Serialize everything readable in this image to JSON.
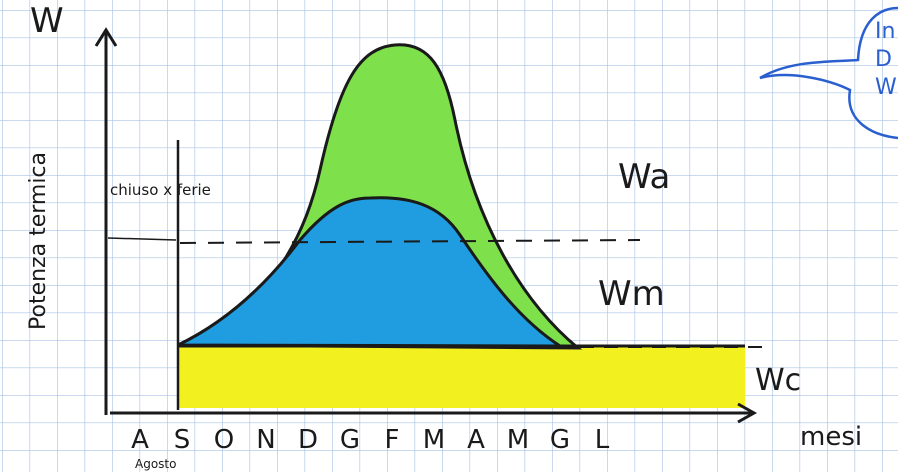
{
  "y_axis": {
    "label": "W",
    "title": "Potenza termica"
  },
  "x_axis": {
    "label": "mesi",
    "months": [
      "A",
      "S",
      "O",
      "N",
      "D",
      "G",
      "F",
      "M",
      "A",
      "M",
      "G",
      "L"
    ],
    "first_month_note": "Agosto"
  },
  "annotations": {
    "closed": "chiuso x ferie",
    "wa": "Wa",
    "wm": "Wm",
    "wc": "Wc"
  },
  "bubble": {
    "lines": [
      "In",
      "D",
      "W"
    ]
  }
}
